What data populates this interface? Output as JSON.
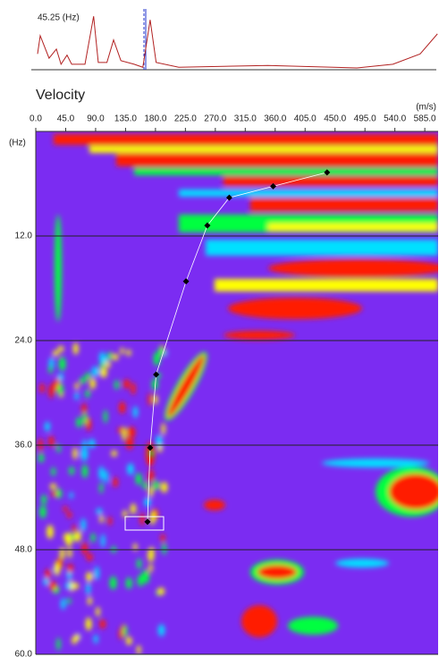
{
  "chart_data": [
    {
      "type": "line",
      "annotation": "45.25 (Hz)",
      "color": "#b22222",
      "x": [
        2.7,
        6.7,
        20,
        31,
        38,
        47,
        54,
        74,
        87,
        94,
        107,
        117,
        128,
        148,
        161,
        172,
        181,
        215,
        349,
        483,
        537,
        578,
        604
      ],
      "values": [
        0.26,
        0.56,
        0.19,
        0.34,
        0.09,
        0.24,
        0.09,
        0.09,
        0.88,
        0.12,
        0.12,
        0.49,
        0.15,
        0.09,
        0.04,
        0.82,
        0.12,
        0.04,
        0.07,
        0.03,
        0.09,
        0.26,
        0.59
      ],
      "xlim": [
        0,
        605
      ],
      "ylim": [
        0,
        1
      ]
    },
    {
      "type": "scatter",
      "title": "Velocity",
      "x_label": "(m/s)",
      "y_label": "(Hz)",
      "x": [
        438,
        357,
        291,
        258,
        226,
        181,
        172,
        168
      ],
      "values": [
        4.7,
        6.3,
        7.6,
        10.8,
        17.2,
        27.9,
        36.3,
        44.8
      ],
      "color": "#000000",
      "line_color": "#ffffff",
      "xlim": [
        0,
        605
      ],
      "ylim": [
        0,
        60
      ],
      "y_inverted": true,
      "grid": true,
      "xticks": [
        {
          "value": 0,
          "label": "0.0"
        },
        {
          "value": 45,
          "label": "45.0"
        },
        {
          "value": 90,
          "label": "90.0"
        },
        {
          "value": 135,
          "label": "135.0"
        },
        {
          "value": 180,
          "label": "180.0"
        },
        {
          "value": 225,
          "label": "225.0"
        },
        {
          "value": 270,
          "label": "270.0"
        },
        {
          "value": 315,
          "label": "315.0"
        },
        {
          "value": 360,
          "label": "360.0"
        },
        {
          "value": 405,
          "label": "405.0"
        },
        {
          "value": 450,
          "label": "450.0"
        },
        {
          "value": 495,
          "label": "495.0"
        },
        {
          "value": 540,
          "label": "540.0"
        },
        {
          "value": 585,
          "label": "585.0"
        }
      ],
      "yticks": [
        {
          "value": 12,
          "label": "12.0"
        },
        {
          "value": 24,
          "label": "24.0"
        },
        {
          "value": 36,
          "label": "36.0"
        },
        {
          "value": 48,
          "label": "48.0"
        },
        {
          "value": 60,
          "label": "60.0"
        }
      ]
    }
  ]
}
